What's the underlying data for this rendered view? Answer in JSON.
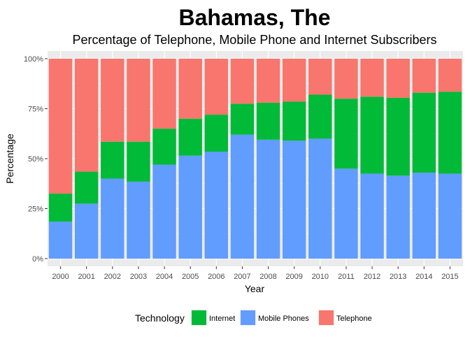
{
  "chart_data": {
    "type": "bar",
    "stacked": true,
    "percent": true,
    "title": "Bahamas, The",
    "subtitle": "Percentage of Telephone, Mobile Phone and Internet Subscribers",
    "xlabel": "Year",
    "ylabel": "Percentage",
    "ylim": [
      0,
      100
    ],
    "y_ticks": [
      "0%",
      "25%",
      "50%",
      "75%",
      "100%"
    ],
    "y_tick_values": [
      0,
      25,
      50,
      75,
      100
    ],
    "grid": true,
    "legend_placement": "bottom",
    "legend_title": "Technology",
    "categories": [
      "2000",
      "2001",
      "2002",
      "2003",
      "2004",
      "2005",
      "2006",
      "2007",
      "2008",
      "2009",
      "2010",
      "2011",
      "2012",
      "2013",
      "2014",
      "2015"
    ],
    "series": [
      {
        "name": "Mobile Phones",
        "color": "#619CFF",
        "values": [
          18.5,
          27.5,
          40,
          38.5,
          47,
          51.5,
          53.5,
          62,
          59.5,
          59,
          60,
          45,
          42.5,
          41.5,
          43,
          42.5
        ]
      },
      {
        "name": "Internet",
        "color": "#00BA38",
        "values": [
          14,
          16,
          18.5,
          20,
          18,
          18.5,
          18.5,
          15.5,
          18.5,
          19.5,
          22,
          35,
          38.5,
          39,
          40,
          41
        ]
      },
      {
        "name": "Telephone",
        "color": "#F8766D",
        "values": [
          67.5,
          56.5,
          41.5,
          41.5,
          35,
          30,
          28,
          22.5,
          22,
          21.5,
          18,
          20,
          19,
          19.5,
          17,
          16.5
        ]
      }
    ],
    "legend_order": [
      "Internet",
      "Mobile Phones",
      "Telephone"
    ],
    "colors": {
      "panel_background": "#EBEBEB",
      "grid": "#FFFFFF"
    }
  }
}
